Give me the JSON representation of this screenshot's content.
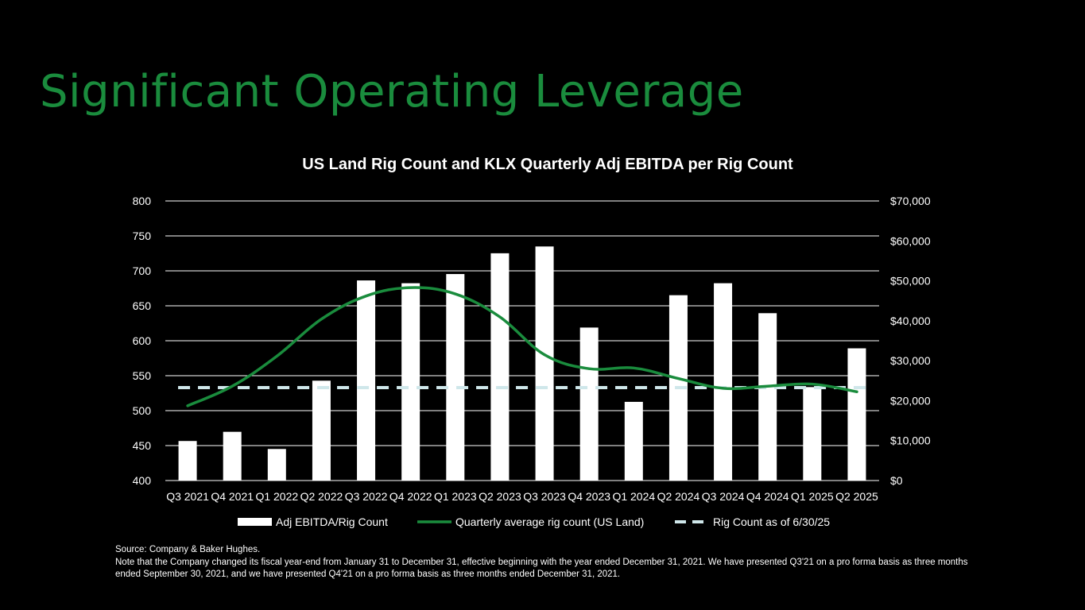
{
  "page": {
    "title": "Significant Operating Leverage",
    "source": "Source: Company & Baker Hughes.",
    "note": "Note that the Company changed its fiscal year-end from January 31 to December 31, effective beginning with the year ended December 31, 2021. We have presented Q3'21 on a pro forma basis as three months ended September 30, 2021, and we have presented Q4'21 on a pro forma basis as three months ended December 31, 2021."
  },
  "colors": {
    "title": "#1a8c3d",
    "line": "#1a8c3d",
    "bars": "#ffffff",
    "reference": "#cfe7ea",
    "grid": "#ffffff"
  },
  "chart_data": {
    "type": "bar",
    "title": "US Land Rig Count and KLX Quarterly Adj EBITDA per Rig Count",
    "categories": [
      "Q3 2021",
      "Q4 2021",
      "Q1 2022",
      "Q2 2022",
      "Q3 2022",
      "Q4 2022",
      "Q1 2023",
      "Q2 2023",
      "Q3 2023",
      "Q4 2023",
      "Q1 2024",
      "Q2 2024",
      "Q3 2024",
      "Q4 2024",
      "Q1 2025",
      "Q2 2025"
    ],
    "left_axis": {
      "range": [
        400,
        800
      ],
      "ticks": [
        "800",
        "750",
        "700",
        "650",
        "600",
        "550",
        "500",
        "450",
        "400"
      ],
      "tick_values": [
        800,
        750,
        700,
        650,
        600,
        550,
        500,
        450,
        400
      ]
    },
    "right_axis": {
      "range": [
        0,
        70000
      ],
      "ticks": [
        "$70,000",
        "$60,000",
        "$50,000",
        "$40,000",
        "$30,000",
        "$20,000",
        "$10,000",
        "$0"
      ],
      "tick_values": [
        70000,
        60000,
        50000,
        40000,
        30000,
        20000,
        10000,
        0
      ]
    },
    "series": [
      {
        "name": "Adj EBITDA/Rig Count",
        "type": "bar",
        "axis": "right",
        "values": [
          9900,
          12200,
          7900,
          25000,
          50100,
          49400,
          51700,
          56900,
          58600,
          38300,
          19700,
          46400,
          49400,
          41900,
          23400,
          33100
        ]
      },
      {
        "name": "Quarterly average rig count (US Land)",
        "type": "line",
        "axis": "left",
        "values": [
          507,
          535,
          578,
          631,
          664,
          676,
          667,
          634,
          580,
          560,
          561,
          546,
          532,
          535,
          538,
          527
        ]
      },
      {
        "name": "Rig Count as of 6/30/25",
        "type": "reference-line",
        "axis": "left",
        "value": 533
      }
    ],
    "legend": [
      "Adj EBITDA/Rig Count",
      "Quarterly average rig count (US Land)",
      "Rig Count as of 6/30/25"
    ],
    "legend_position": "bottom",
    "grid": true
  }
}
